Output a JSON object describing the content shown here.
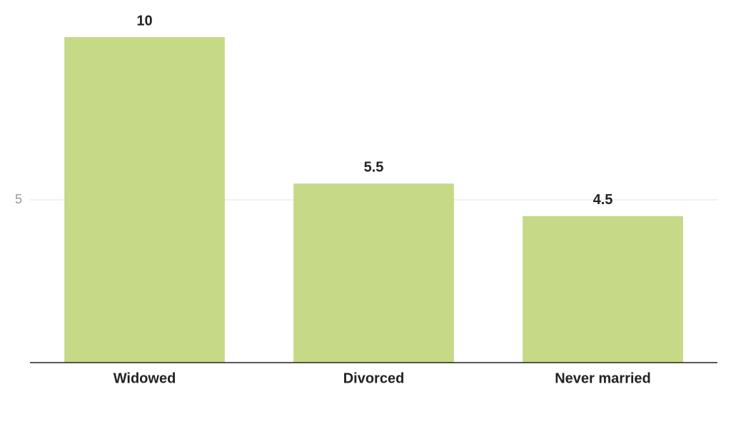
{
  "chart_data": {
    "type": "bar",
    "categories": [
      "Widowed",
      "Divorced",
      "Never married"
    ],
    "values": [
      10,
      5.5,
      4.5
    ],
    "color": "#c5d987",
    "ylim": [
      0,
      10
    ],
    "yticks": [
      5
    ],
    "grid": true
  }
}
